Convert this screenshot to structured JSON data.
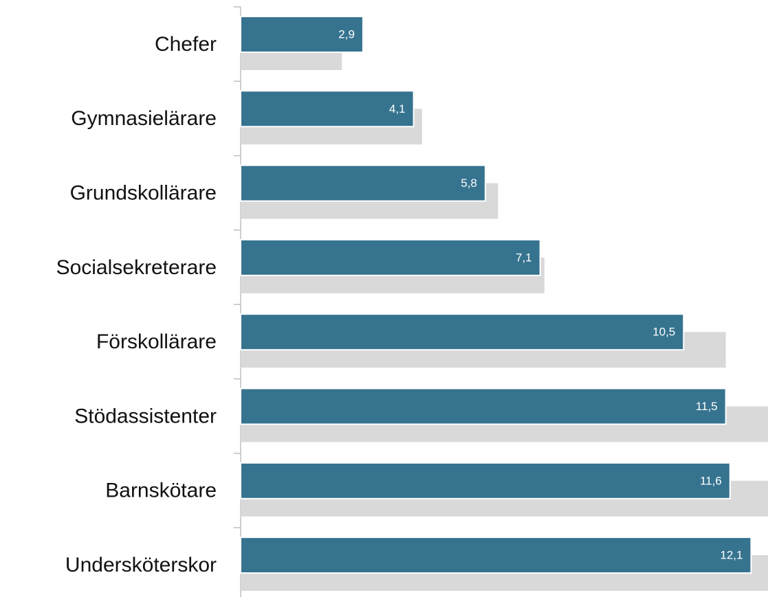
{
  "chart_data": {
    "type": "hbar",
    "categories": [
      "Chefer",
      "Gymnasielärare",
      "Grundskollärare",
      "Socialsekreterare",
      "Förskollärare",
      "Stödassistenter",
      "Barnskötare",
      "Undersköterskor"
    ],
    "series": [
      {
        "color": "#36738f",
        "values": [
          2.9,
          4.1,
          5.8,
          7.1,
          10.5,
          11.5,
          11.6,
          12.1
        ],
        "value_labels": [
          "2,9",
          "4,1",
          "5,8",
          "7,1",
          "10,5",
          "11,5",
          "11,6",
          "12,1"
        ]
      },
      {
        "color": "#d9d9d9",
        "values": [
          2.4,
          4.3,
          6.1,
          7.2,
          11.5,
          12.5,
          12.5,
          12.5
        ]
      }
    ],
    "xlim": [
      0,
      12.5
    ]
  }
}
